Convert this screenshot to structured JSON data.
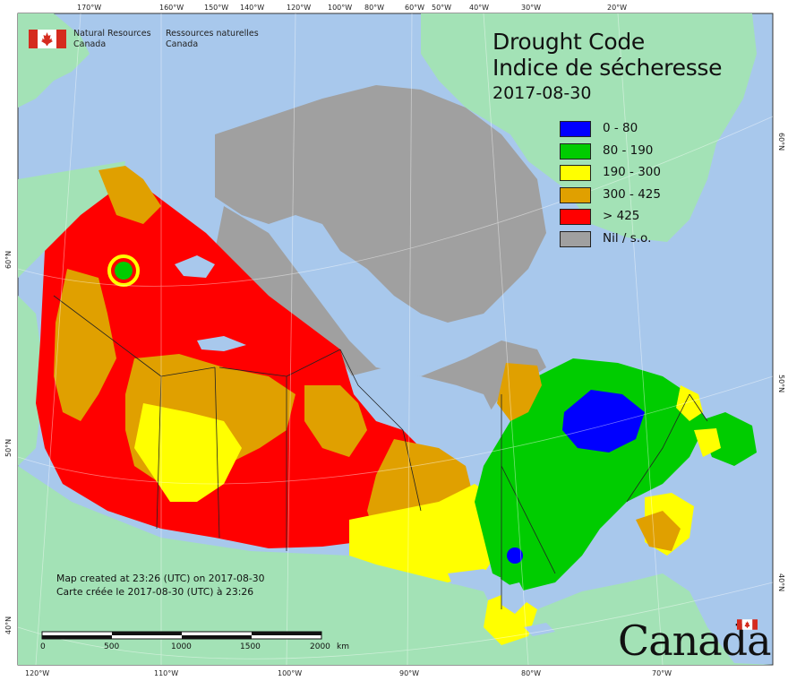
{
  "map": {
    "title_en": "Drought Code",
    "title_fr": "Indice de sécheresse",
    "date": "2017-08-30",
    "top_ticks": [
      "170°W",
      "160°W",
      "150°W",
      "140°W",
      "120°W",
      "100°W",
      "80°W",
      "60°W",
      "50°W",
      "40°W",
      "30°W",
      "20°W"
    ],
    "bottom_ticks": [
      "120°W",
      "110°W",
      "100°W",
      "90°W",
      "80°W",
      "70°W"
    ],
    "left_ticks": [
      "60°N",
      "50°N",
      "40°N"
    ],
    "right_ticks": [
      "60°N",
      "50°N",
      "40°N"
    ],
    "colors": {
      "ocean": "#a8c8ec",
      "land_other": "#a3e2b6",
      "class_0_80": "#0000ff",
      "class_80_190": "#00cc00",
      "class_190_300": "#ffff00",
      "class_300_425": "#e0a000",
      "class_gt_425": "#ff0000",
      "nil": "#a0a0a0"
    }
  },
  "legend": {
    "items": [
      {
        "label": "0 - 80",
        "color": "#0000ff"
      },
      {
        "label": "80 - 190",
        "color": "#00cc00"
      },
      {
        "label": "190 - 300",
        "color": "#ffff00"
      },
      {
        "label": "300 - 425",
        "color": "#e0a000"
      },
      {
        "label": "> 425",
        "color": "#ff0000"
      },
      {
        "label": "Nil / s.o.",
        "color": "#a0a0a0"
      }
    ]
  },
  "agency": {
    "name_en_line1": "Natural Resources",
    "name_en_line2": "Canada",
    "name_fr_line1": "Ressources naturelles",
    "name_fr_line2": "Canada"
  },
  "credits": {
    "line_en": "Map created at 23:26 (UTC) on 2017-08-30",
    "line_fr": "Carte créée le 2017-08-30 (UTC) à 23:26"
  },
  "scale": {
    "labels": [
      "0",
      "500",
      "1000",
      "1500",
      "2000"
    ],
    "unit": "km"
  },
  "wordmark": {
    "text": "Canada"
  }
}
